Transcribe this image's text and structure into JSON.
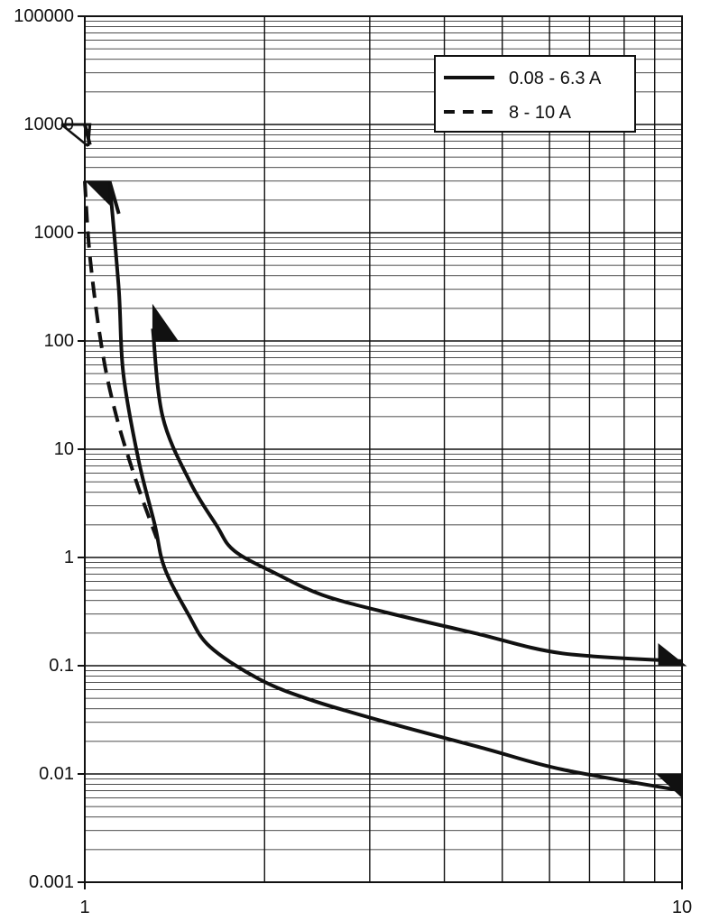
{
  "chart_data": {
    "type": "line",
    "title": "",
    "xlabel": "",
    "ylabel": "",
    "x_scale": "log",
    "y_scale": "log",
    "xlim": [
      1,
      10
    ],
    "ylim": [
      0.001,
      100000
    ],
    "grid": true,
    "x_ticks": [
      {
        "value": 1,
        "label": "1"
      },
      {
        "value": 10,
        "label": "10"
      }
    ],
    "y_ticks": [
      {
        "value": 100000,
        "label": "100000"
      },
      {
        "value": 10000,
        "label": "10000"
      },
      {
        "value": 1000,
        "label": "1000"
      },
      {
        "value": 100,
        "label": "100"
      },
      {
        "value": 10,
        "label": "10"
      },
      {
        "value": 1,
        "label": "1"
      },
      {
        "value": 0.1,
        "label": "0.1"
      },
      {
        "value": 0.01,
        "label": "0.01"
      },
      {
        "value": 0.001,
        "label": "0.001"
      }
    ],
    "legend": {
      "position": "top-right",
      "entries": [
        {
          "label": "0.08 - 6.3 A",
          "style": "solid"
        },
        {
          "label": "8 - 10 A",
          "style": "dashed"
        }
      ]
    },
    "series": [
      {
        "name": "0.08 - 6.3 A",
        "style": "solid",
        "role": "lower",
        "points": [
          [
            1.1,
            3000
          ],
          [
            1.14,
            300
          ],
          [
            1.16,
            50
          ],
          [
            1.23,
            8
          ],
          [
            1.31,
            2
          ],
          [
            1.36,
            0.8
          ],
          [
            1.49,
            0.3
          ],
          [
            1.62,
            0.15
          ],
          [
            1.96,
            0.075
          ],
          [
            2.4,
            0.048
          ],
          [
            3.2,
            0.03
          ],
          [
            4.7,
            0.017
          ],
          [
            6.3,
            0.011
          ],
          [
            10,
            0.007
          ]
        ]
      },
      {
        "name": "8 - 10 A",
        "style": "dashed",
        "role": "lower",
        "points": [
          [
            1.0,
            3000
          ],
          [
            1.02,
            600
          ],
          [
            1.07,
            80
          ],
          [
            1.13,
            20
          ],
          [
            1.22,
            5
          ],
          [
            1.32,
            1.5
          ]
        ]
      },
      {
        "name": "",
        "style": "solid",
        "role": "upper",
        "points": [
          [
            1.3,
            130
          ],
          [
            1.35,
            20
          ],
          [
            1.5,
            5
          ],
          [
            1.66,
            2
          ],
          [
            1.78,
            1.15
          ],
          [
            2.1,
            0.7
          ],
          [
            2.5,
            0.45
          ],
          [
            3.2,
            0.31
          ],
          [
            4.5,
            0.2
          ],
          [
            6.3,
            0.13
          ],
          [
            10,
            0.11
          ]
        ]
      },
      {
        "name": "",
        "style": "solid",
        "role": "upper",
        "points": [
          [
            1.0,
            10000
          ],
          [
            1.02,
            6500
          ]
        ]
      },
      {
        "name": "",
        "style": "solid",
        "role": "upper",
        "points": [
          [
            1.1,
            3000
          ],
          [
            1.14,
            1500
          ]
        ]
      }
    ]
  }
}
